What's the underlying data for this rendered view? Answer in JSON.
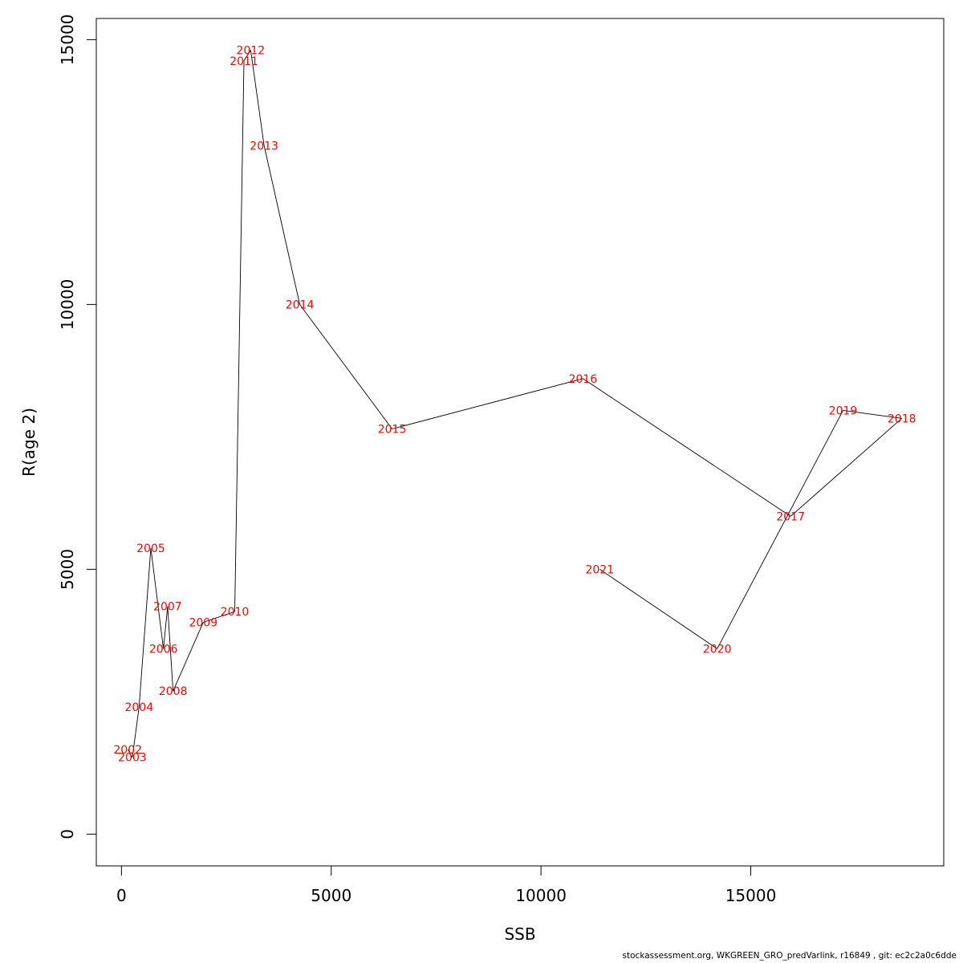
{
  "chart_data": {
    "type": "line",
    "xlabel": "SSB",
    "ylabel": "R(age 2)",
    "xlim": [
      -600,
      19600
    ],
    "ylim": [
      -600,
      15400
    ],
    "x_ticks": [
      0,
      5000,
      10000,
      15000
    ],
    "y_ticks": [
      0,
      5000,
      10000,
      15000
    ],
    "x_tick_labels": [
      "0",
      "5000",
      "10000",
      "15000"
    ],
    "y_tick_labels": [
      "0",
      "5000",
      "10000",
      "15000"
    ],
    "grid": false,
    "series": [
      {
        "line_color": "#000000",
        "label_color": "#ff0000",
        "points": [
          {
            "label": "2002",
            "x": 150,
            "y": 1600
          },
          {
            "label": "2003",
            "x": 260,
            "y": 1450
          },
          {
            "label": "2004",
            "x": 420,
            "y": 2400
          },
          {
            "label": "2005",
            "x": 700,
            "y": 5400
          },
          {
            "label": "2006",
            "x": 1000,
            "y": 3500
          },
          {
            "label": "2007",
            "x": 1100,
            "y": 4300
          },
          {
            "label": "2008",
            "x": 1230,
            "y": 2700
          },
          {
            "label": "2009",
            "x": 1950,
            "y": 4000
          },
          {
            "label": "2010",
            "x": 2700,
            "y": 4200
          },
          {
            "label": "2011",
            "x": 2920,
            "y": 14600
          },
          {
            "label": "2012",
            "x": 3080,
            "y": 14800
          },
          {
            "label": "2013",
            "x": 3400,
            "y": 13000
          },
          {
            "label": "2014",
            "x": 4250,
            "y": 10000
          },
          {
            "label": "2015",
            "x": 6450,
            "y": 7650
          },
          {
            "label": "2016",
            "x": 11000,
            "y": 8600
          },
          {
            "label": "2017",
            "x": 15950,
            "y": 6000
          },
          {
            "label": "2018",
            "x": 18600,
            "y": 7850
          },
          {
            "label": "2019",
            "x": 17200,
            "y": 8000
          },
          {
            "label": "2020",
            "x": 14200,
            "y": 3500
          },
          {
            "label": "2021",
            "x": 11400,
            "y": 5000
          }
        ]
      }
    ]
  },
  "footer": {
    "text": "stockassessment.org, WKGREEN_GRO_predVarlink, r16849 , git: ec2c2a0c6dde"
  }
}
